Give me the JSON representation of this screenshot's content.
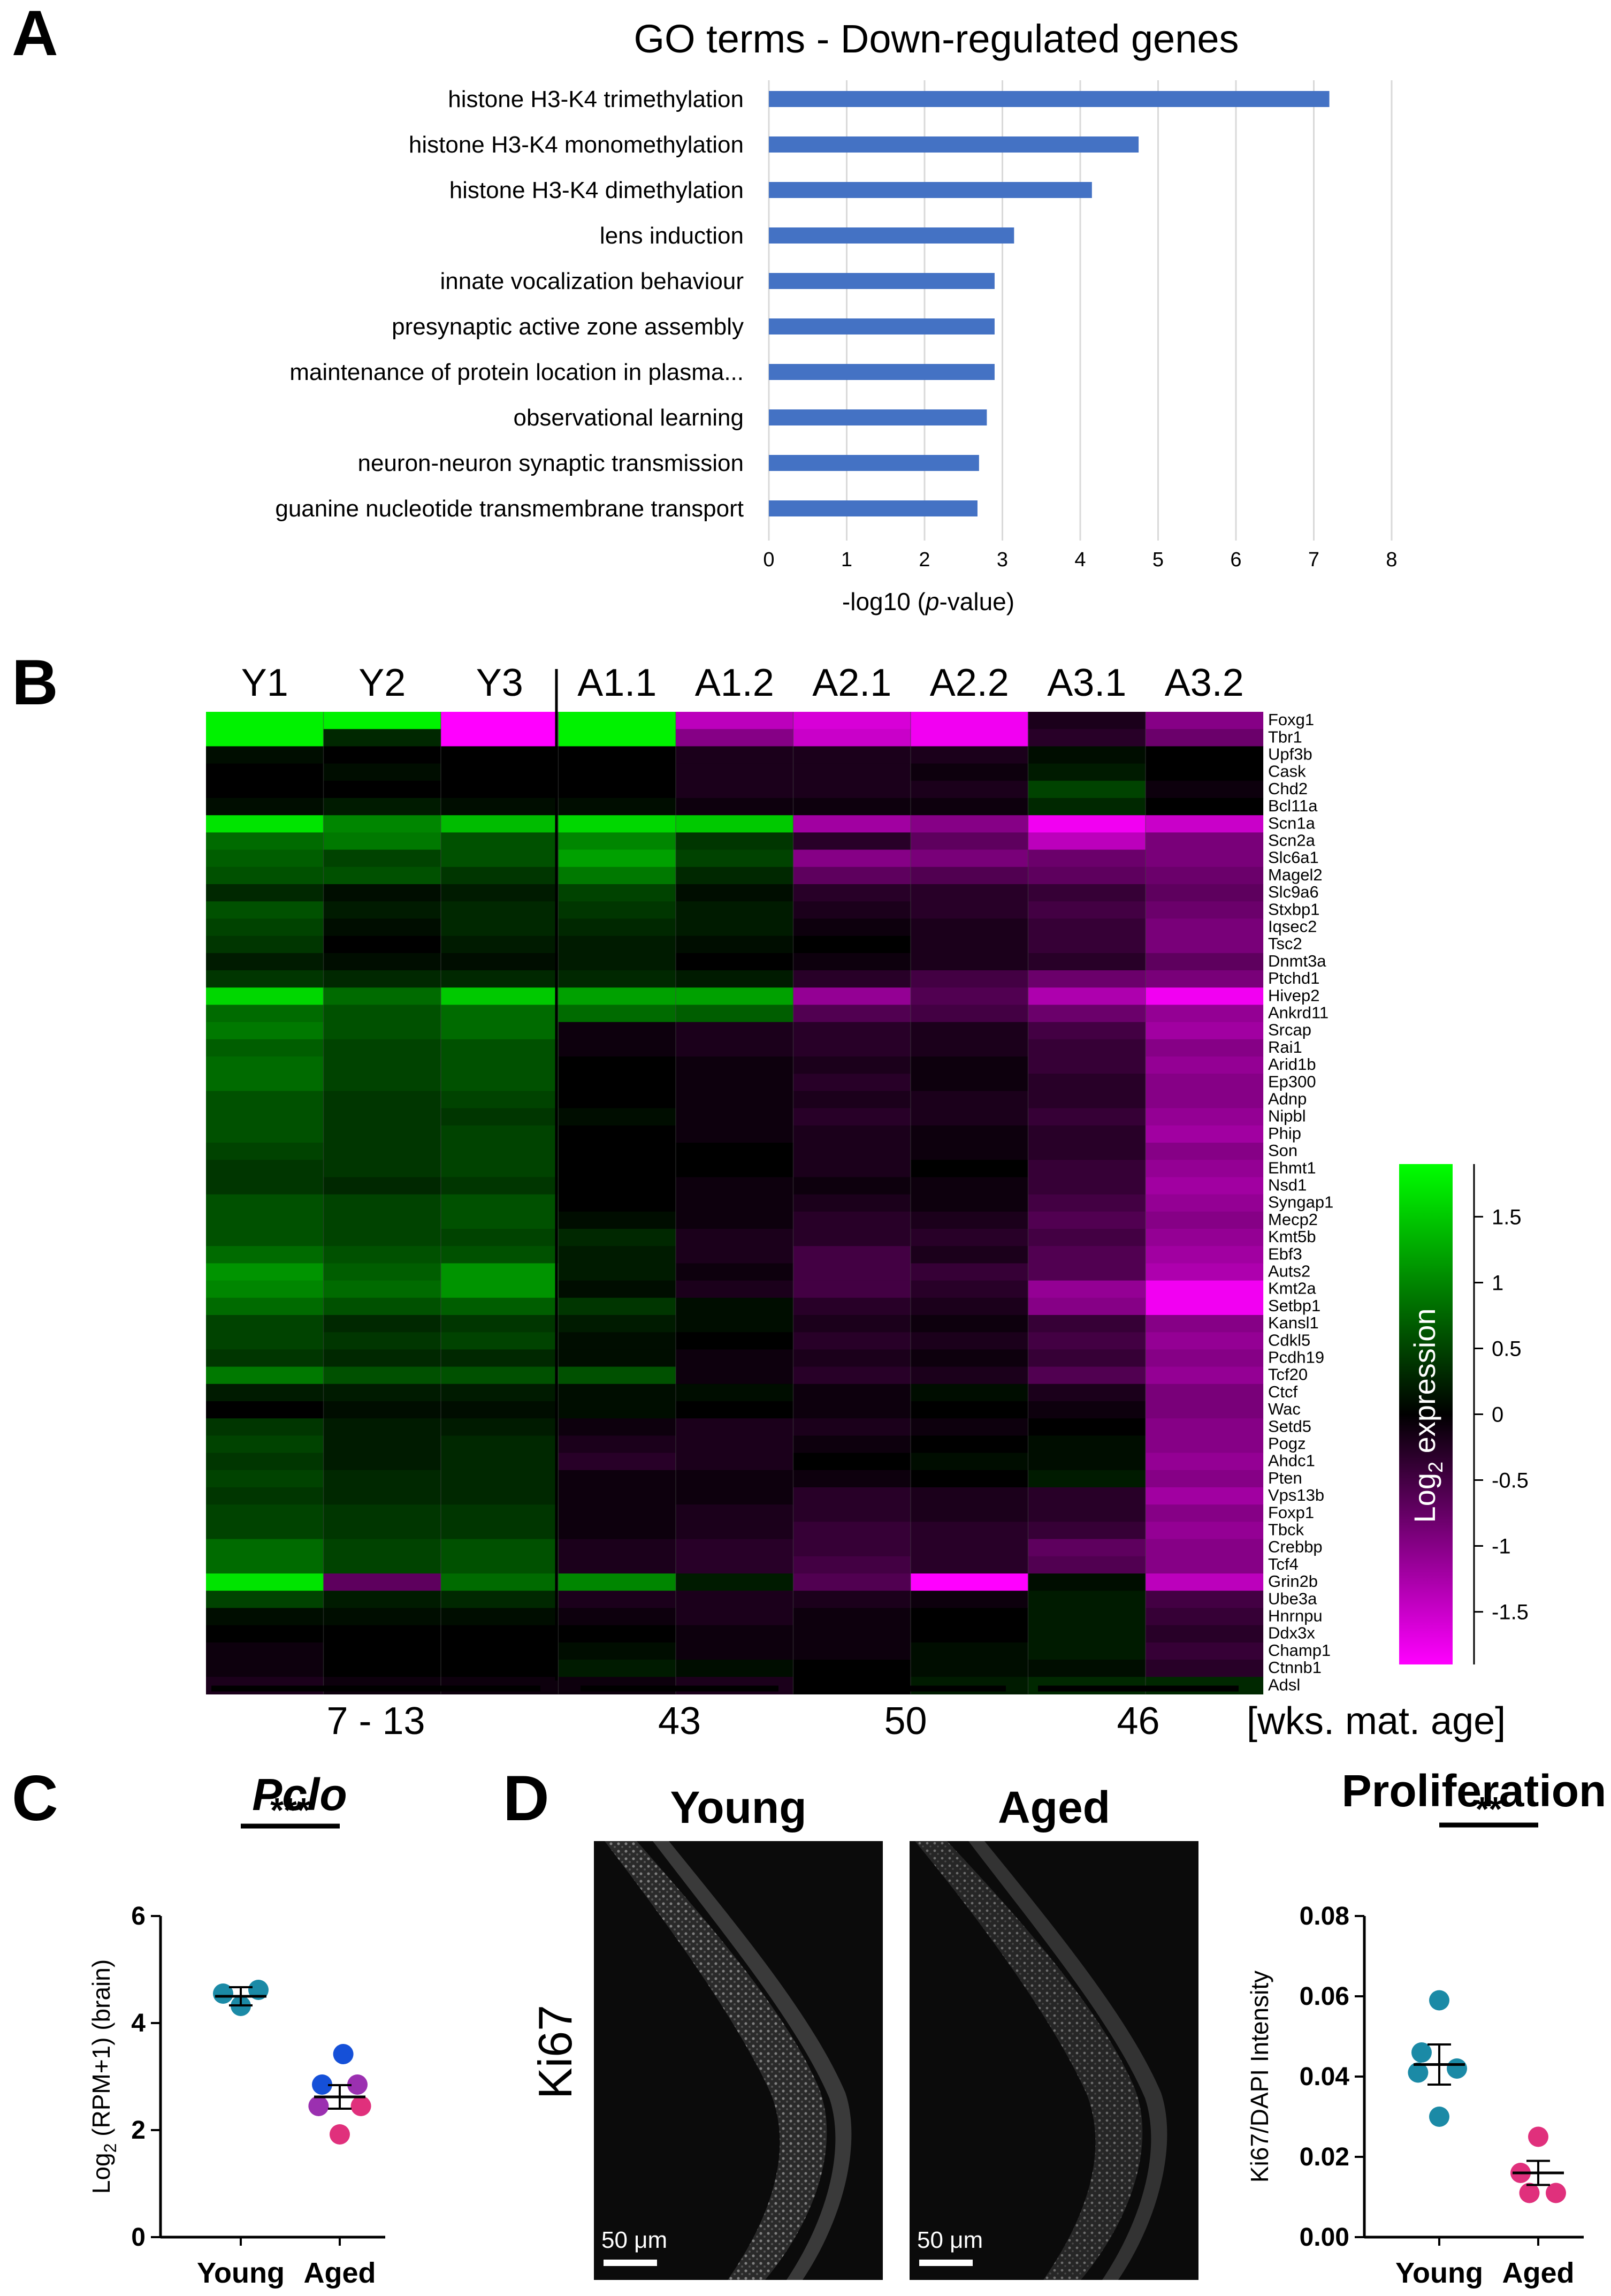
{
  "colors": {
    "bar": "#4472C4",
    "grid": "#d9d9d9",
    "young": "#1b8aa6",
    "aged_pink": "#e0307c",
    "aged_purple": "#9b30b0",
    "aged_blue": "#1550d8",
    "heat_low": "#ff00ff",
    "heat_mid": "#000000",
    "heat_high": "#00ff00"
  },
  "panels": {
    "a": "A",
    "b": "B",
    "c": "C",
    "d": "D"
  },
  "chart_data": [
    {
      "id": "panelA",
      "type": "bar",
      "orientation": "horizontal",
      "title": "GO terms - Down-regulated genes",
      "xlabel_pre": "-log10 (",
      "xlabel_italic": "p",
      "xlabel_post": "-value)",
      "xlim": [
        0,
        8
      ],
      "xticks": [
        0,
        1,
        2,
        3,
        4,
        5,
        6,
        7,
        8
      ],
      "categories": [
        "histone H3-K4 trimethylation",
        "histone H3-K4 monomethylation",
        "histone H3-K4 dimethylation",
        "lens induction",
        "innate vocalization behaviour",
        "presynaptic active zone assembly",
        "maintenance of protein location in plasma...",
        "observational learning",
        "neuron-neuron synaptic transmission",
        "guanine nucleotide transmembrane transport"
      ],
      "values": [
        7.2,
        4.75,
        4.15,
        3.15,
        2.9,
        2.9,
        2.9,
        2.8,
        2.7,
        2.68
      ]
    },
    {
      "id": "panelB",
      "type": "heatmap",
      "columns": [
        "Y1",
        "Y2",
        "Y3",
        "A1.1",
        "A1.2",
        "A2.1",
        "A2.2",
        "A3.1",
        "A3.2"
      ],
      "rows": [
        "Foxg1",
        "Tbr1",
        "Upf3b",
        "Cask",
        "Chd2",
        "Bcl11a",
        "Scn1a",
        "Scn2a",
        "Slc6a1",
        "Magel2",
        "Slc9a6",
        "Stxbp1",
        "Iqsec2",
        "Tsc2",
        "Dnmt3a",
        "Ptchd1",
        "Hivep2",
        "Ankrd11",
        "Srcap",
        "Rai1",
        "Arid1b",
        "Ep300",
        "Adnp",
        "Nipbl",
        "Phip",
        "Son",
        "Ehmt1",
        "Nsd1",
        "Syngap1",
        "Mecp2",
        "Kmt5b",
        "Ebf3",
        "Auts2",
        "Kmt2a",
        "Setbp1",
        "Kansl1",
        "Cdkl5",
        "Pcdh19",
        "Tcf20",
        "Ctcf",
        "Wac",
        "Setd5",
        "Pogz",
        "Ahdc1",
        "Pten",
        "Vps13b",
        "Foxp1",
        "Tbck",
        "Crebbp",
        "Tcf4",
        "Grin2b",
        "Ube3a",
        "Hnrnpu",
        "Ddx3x",
        "Champ1",
        "Ctnnb1",
        "Adsl"
      ],
      "values": [
        [
          1.8,
          1.8,
          -1.9,
          1.8,
          -1.4,
          -1.6,
          -1.8,
          -0.2,
          -1.0
        ],
        [
          1.8,
          0.3,
          -1.9,
          1.8,
          -1.0,
          -1.5,
          -1.8,
          -0.3,
          -0.8
        ],
        [
          0.1,
          0.0,
          0.0,
          0.0,
          -0.2,
          -0.2,
          -0.2,
          0.1,
          0.0
        ],
        [
          0.0,
          0.1,
          0.0,
          0.0,
          -0.2,
          -0.2,
          -0.1,
          0.2,
          0.0
        ],
        [
          0.0,
          0.0,
          0.0,
          0.0,
          -0.2,
          -0.2,
          -0.2,
          0.5,
          -0.1
        ],
        [
          0.1,
          0.2,
          0.1,
          0.1,
          -0.1,
          -0.1,
          -0.1,
          0.3,
          0.0
        ],
        [
          1.7,
          1.0,
          1.4,
          1.6,
          1.5,
          -1.2,
          -1.0,
          -1.8,
          -1.5
        ],
        [
          0.8,
          0.9,
          0.6,
          1.0,
          0.4,
          -0.3,
          -0.7,
          -1.4,
          -0.9
        ],
        [
          0.7,
          0.5,
          0.6,
          1.2,
          0.5,
          -1.0,
          -0.9,
          -0.8,
          -0.9
        ],
        [
          0.6,
          0.6,
          0.4,
          0.9,
          0.3,
          -0.7,
          -0.6,
          -0.7,
          -0.8
        ],
        [
          0.3,
          0.1,
          0.2,
          0.5,
          0.1,
          -0.3,
          -0.3,
          -0.4,
          -0.7
        ],
        [
          0.6,
          0.2,
          0.3,
          0.4,
          0.2,
          -0.2,
          -0.3,
          -0.5,
          -0.8
        ],
        [
          0.5,
          0.1,
          0.3,
          0.3,
          0.2,
          -0.1,
          -0.2,
          -0.4,
          -0.9
        ],
        [
          0.4,
          0.0,
          0.2,
          0.2,
          0.1,
          0.0,
          -0.2,
          -0.4,
          -0.9
        ],
        [
          0.2,
          0.1,
          0.1,
          0.2,
          0.0,
          -0.1,
          -0.2,
          -0.3,
          -0.7
        ],
        [
          0.4,
          0.3,
          0.3,
          0.3,
          0.2,
          -0.3,
          -0.5,
          -0.8,
          -0.9
        ],
        [
          1.6,
          0.8,
          1.5,
          1.2,
          1.2,
          -1.1,
          -0.6,
          -1.3,
          -1.8
        ],
        [
          0.8,
          0.6,
          0.8,
          0.8,
          0.7,
          -0.6,
          -0.5,
          -0.8,
          -1.1
        ],
        [
          0.9,
          0.6,
          0.8,
          -0.1,
          -0.2,
          -0.3,
          -0.2,
          -0.5,
          -1.2
        ],
        [
          0.7,
          0.5,
          0.6,
          -0.1,
          -0.2,
          -0.3,
          -0.2,
          -0.4,
          -1.0
        ],
        [
          0.8,
          0.5,
          0.6,
          0.0,
          -0.1,
          -0.2,
          -0.1,
          -0.4,
          -1.1
        ],
        [
          0.8,
          0.5,
          0.6,
          0.0,
          -0.1,
          -0.3,
          -0.1,
          -0.3,
          -1.0
        ],
        [
          0.6,
          0.4,
          0.5,
          0.0,
          -0.1,
          -0.2,
          -0.2,
          -0.3,
          -1.0
        ],
        [
          0.6,
          0.4,
          0.4,
          0.1,
          -0.1,
          -0.3,
          -0.2,
          -0.4,
          -1.1
        ],
        [
          0.6,
          0.4,
          0.5,
          0.0,
          -0.1,
          -0.2,
          -0.1,
          -0.3,
          -1.2
        ],
        [
          0.5,
          0.4,
          0.5,
          0.0,
          0.0,
          -0.2,
          -0.1,
          -0.3,
          -1.0
        ],
        [
          0.4,
          0.4,
          0.5,
          0.0,
          0.0,
          -0.2,
          0.0,
          -0.4,
          -1.1
        ],
        [
          0.4,
          0.3,
          0.4,
          0.0,
          -0.1,
          -0.1,
          -0.1,
          -0.4,
          -1.2
        ],
        [
          0.6,
          0.5,
          0.6,
          0.0,
          -0.1,
          -0.2,
          -0.1,
          -0.5,
          -1.1
        ],
        [
          0.6,
          0.5,
          0.6,
          0.1,
          -0.1,
          -0.3,
          -0.2,
          -0.6,
          -1.0
        ],
        [
          0.6,
          0.5,
          0.5,
          0.3,
          -0.2,
          -0.3,
          -0.3,
          -0.5,
          -1.1
        ],
        [
          0.8,
          0.6,
          0.6,
          0.2,
          -0.2,
          -0.5,
          -0.2,
          -0.6,
          -1.2
        ],
        [
          1.1,
          0.7,
          1.1,
          0.2,
          -0.1,
          -0.5,
          -0.4,
          -0.6,
          -1.3
        ],
        [
          1.0,
          0.8,
          1.1,
          0.1,
          -0.2,
          -0.5,
          -0.3,
          -1.1,
          -1.8
        ],
        [
          0.8,
          0.6,
          0.7,
          0.4,
          0.1,
          -0.3,
          -0.2,
          -1.0,
          -1.8
        ],
        [
          0.5,
          0.3,
          0.4,
          0.2,
          0.1,
          -0.2,
          -0.1,
          -0.4,
          -1.0
        ],
        [
          0.5,
          0.4,
          0.5,
          0.1,
          0.0,
          -0.3,
          -0.2,
          -0.5,
          -1.1
        ],
        [
          0.4,
          0.3,
          0.3,
          0.1,
          -0.1,
          -0.2,
          -0.1,
          -0.4,
          -1.0
        ],
        [
          0.9,
          0.6,
          0.6,
          0.6,
          -0.1,
          -0.3,
          -0.2,
          -0.6,
          -1.1
        ],
        [
          0.2,
          0.2,
          0.2,
          0.1,
          0.1,
          -0.1,
          0.1,
          -0.2,
          -0.9
        ],
        [
          0.0,
          0.1,
          0.1,
          0.1,
          0.0,
          -0.1,
          0.0,
          -0.1,
          -0.9
        ],
        [
          0.4,
          0.2,
          0.2,
          -0.1,
          -0.2,
          -0.2,
          -0.1,
          0.0,
          -1.0
        ],
        [
          0.5,
          0.2,
          0.3,
          -0.2,
          -0.2,
          -0.1,
          0.0,
          0.1,
          -1.0
        ],
        [
          0.4,
          0.2,
          0.3,
          -0.3,
          -0.2,
          0.0,
          0.1,
          0.1,
          -1.1
        ],
        [
          0.5,
          0.3,
          0.3,
          -0.1,
          -0.1,
          -0.1,
          0.0,
          0.2,
          -1.0
        ],
        [
          0.4,
          0.3,
          0.3,
          -0.1,
          -0.1,
          -0.3,
          -0.2,
          -0.3,
          -1.2
        ],
        [
          0.5,
          0.4,
          0.4,
          -0.1,
          -0.2,
          -0.3,
          -0.2,
          -0.3,
          -1.0
        ],
        [
          0.5,
          0.4,
          0.4,
          -0.1,
          -0.2,
          -0.4,
          -0.3,
          -0.4,
          -1.1
        ],
        [
          0.8,
          0.5,
          0.6,
          -0.2,
          -0.3,
          -0.4,
          -0.3,
          -0.7,
          -1.0
        ],
        [
          0.8,
          0.5,
          0.6,
          -0.2,
          -0.3,
          -0.5,
          -0.3,
          -0.6,
          -1.0
        ],
        [
          1.7,
          -0.7,
          0.8,
          1.0,
          0.2,
          -0.6,
          -1.9,
          0.1,
          -1.4
        ],
        [
          0.5,
          0.2,
          0.3,
          -0.2,
          -0.2,
          -0.2,
          -0.1,
          0.2,
          -0.5
        ],
        [
          0.1,
          0.1,
          0.1,
          -0.1,
          -0.2,
          -0.1,
          0.0,
          0.2,
          -0.4
        ],
        [
          0.0,
          0.0,
          0.0,
          0.0,
          -0.1,
          -0.1,
          0.0,
          0.2,
          -0.3
        ],
        [
          -0.1,
          0.0,
          0.0,
          0.1,
          -0.1,
          -0.1,
          0.1,
          0.2,
          -0.4
        ],
        [
          -0.1,
          0.0,
          0.0,
          0.2,
          0.1,
          0.0,
          0.1,
          0.1,
          -0.3
        ],
        [
          -0.2,
          -0.1,
          -0.1,
          -0.1,
          -0.2,
          0.0,
          0.2,
          0.3,
          0.3
        ]
      ],
      "colorbar_label_pre": "Log",
      "colorbar_label_sub": "2",
      "colorbar_label_post": " expression",
      "colorbar_range": [
        -1.9,
        1.9
      ],
      "colorbar_ticks": [
        "1.5",
        "1",
        "0.5",
        "0",
        "-0.5",
        "-1",
        "-1.5"
      ],
      "colorbar_tick_values": [
        1.5,
        1,
        0.5,
        0,
        -0.5,
        -1,
        -1.5
      ],
      "groups": [
        {
          "label": "7 - 13",
          "from": 0,
          "to": 2
        },
        {
          "label": "43",
          "from": 3,
          "to": 4
        },
        {
          "label": "50",
          "from": 5,
          "to": 6
        },
        {
          "label": "46",
          "from": 7,
          "to": 8
        }
      ],
      "group_axis_label": "[wks. mat. age]"
    },
    {
      "id": "panelC",
      "type": "scatter",
      "title": "Pclo",
      "ylabel_pre": "Log",
      "ylabel_sub": "2",
      "ylabel_post": " (RPM+1) (brain)",
      "ylim": [
        0,
        6
      ],
      "yticks": [
        "0",
        "2",
        "4",
        "6"
      ],
      "ytick_values": [
        0,
        2,
        4,
        6
      ],
      "categories": [
        "Young",
        "Aged"
      ],
      "significance": "***",
      "points": [
        {
          "group": 0,
          "y": 4.55,
          "dx": -1,
          "color": "young"
        },
        {
          "group": 0,
          "y": 4.62,
          "dx": 1,
          "color": "young"
        },
        {
          "group": 0,
          "y": 4.32,
          "dx": 0,
          "color": "young"
        },
        {
          "group": 1,
          "y": 3.42,
          "dx": 0.2,
          "color": "aged_blue"
        },
        {
          "group": 1,
          "y": 2.85,
          "dx": -1,
          "color": "aged_blue"
        },
        {
          "group": 1,
          "y": 2.85,
          "dx": 1,
          "color": "aged_purple"
        },
        {
          "group": 1,
          "y": 2.45,
          "dx": -1.2,
          "color": "aged_purple"
        },
        {
          "group": 1,
          "y": 2.45,
          "dx": 1.2,
          "color": "aged_pink"
        },
        {
          "group": 1,
          "y": 1.92,
          "dx": 0,
          "color": "aged_pink"
        }
      ],
      "means": [
        4.5,
        2.62
      ],
      "sems": [
        0.17,
        0.22
      ]
    },
    {
      "id": "panelD",
      "type": "scatter",
      "title": "Proliferation",
      "ylabel": "Ki67/DAPI Intensity",
      "ylim": [
        0,
        0.08
      ],
      "yticks": [
        "0.00",
        "0.02",
        "0.04",
        "0.06",
        "0.08"
      ],
      "ytick_values": [
        0,
        0.02,
        0.04,
        0.06,
        0.08
      ],
      "categories": [
        "Young",
        "Aged"
      ],
      "significance": "**",
      "points": [
        {
          "group": 0,
          "y": 0.059,
          "dx": 0,
          "color": "young"
        },
        {
          "group": 0,
          "y": 0.046,
          "dx": -1,
          "color": "young"
        },
        {
          "group": 0,
          "y": 0.042,
          "dx": 1,
          "color": "young"
        },
        {
          "group": 0,
          "y": 0.041,
          "dx": -1.2,
          "color": "young"
        },
        {
          "group": 0,
          "y": 0.03,
          "dx": 0,
          "color": "young"
        },
        {
          "group": 1,
          "y": 0.025,
          "dx": 0,
          "color": "aged_pink"
        },
        {
          "group": 1,
          "y": 0.016,
          "dx": -1,
          "color": "aged_pink"
        },
        {
          "group": 1,
          "y": 0.011,
          "dx": -0.5,
          "color": "aged_pink"
        },
        {
          "group": 1,
          "y": 0.011,
          "dx": 1,
          "color": "aged_pink"
        }
      ],
      "means": [
        0.043,
        0.016
      ],
      "sems": [
        0.005,
        0.003
      ]
    }
  ],
  "microscopy": {
    "stain_label": "Ki67",
    "young_title": "Young",
    "aged_title": "Aged",
    "scale_label": "50 μm"
  }
}
